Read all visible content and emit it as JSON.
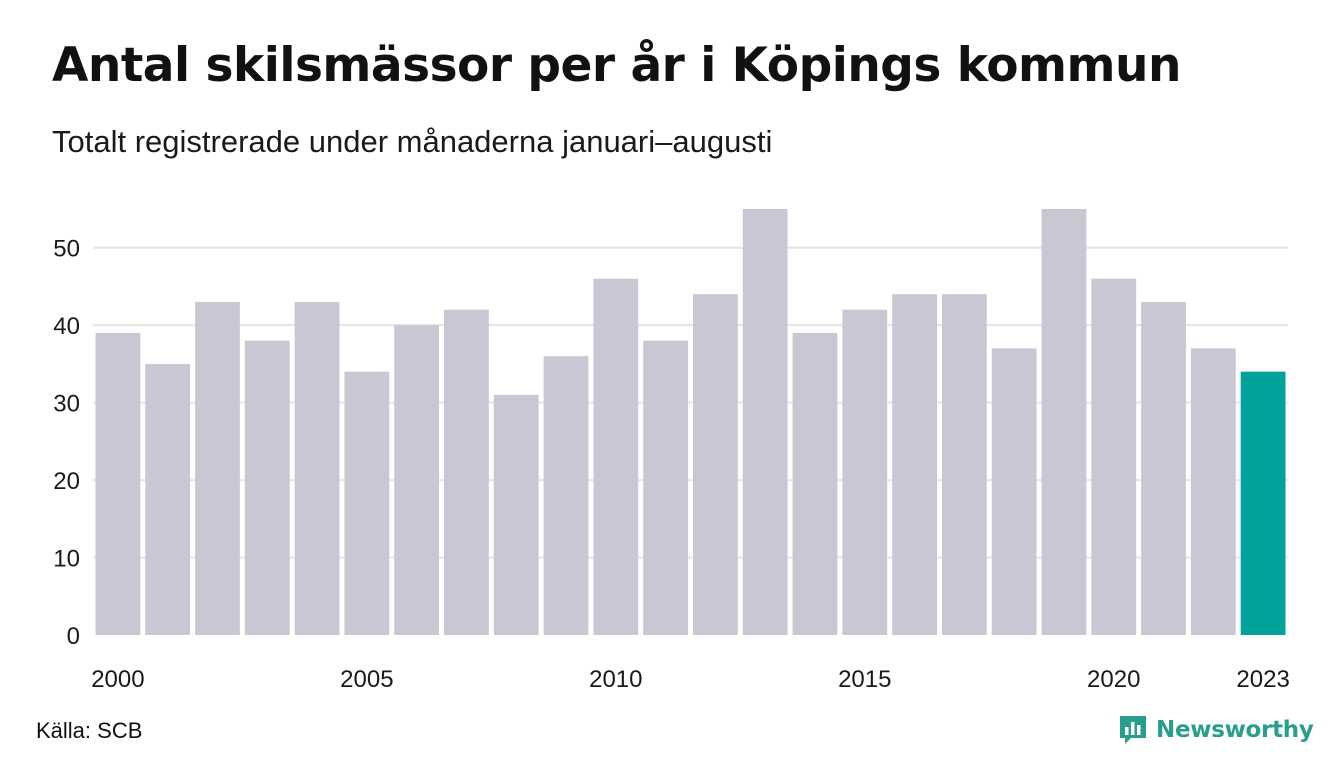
{
  "header": {
    "title": "Antal skilsmässor per år i Köpings kommun",
    "subtitle": "Totalt registrerade under månaderna januari–augusti"
  },
  "footer": {
    "source": "Källa: SCB",
    "brand": "Newsworthy",
    "brand_icon": "newsworthy-logo-icon"
  },
  "colors": {
    "bar": "#c9c7d3",
    "highlight": "#00a39a",
    "grid": "#e4e4e4",
    "brand": "#2a9d8f"
  },
  "chart_data": {
    "type": "bar",
    "categories": [
      "2000",
      "2001",
      "2002",
      "2003",
      "2004",
      "2005",
      "2006",
      "2007",
      "2008",
      "2009",
      "2010",
      "2011",
      "2012",
      "2013",
      "2014",
      "2015",
      "2016",
      "2017",
      "2018",
      "2019",
      "2020",
      "2021",
      "2022",
      "2023"
    ],
    "values": [
      39,
      35,
      43,
      38,
      43,
      34,
      40,
      42,
      31,
      36,
      46,
      38,
      44,
      55,
      39,
      42,
      44,
      44,
      37,
      55,
      46,
      43,
      37,
      34
    ],
    "highlight_category": "2023",
    "x_tick_labels": [
      "2000",
      "2005",
      "2010",
      "2015",
      "2020",
      "2023"
    ],
    "y_ticks": [
      0,
      10,
      20,
      30,
      40,
      50
    ],
    "ylim": [
      0,
      55
    ],
    "xlabel": "",
    "ylabel": "",
    "grid": true,
    "legend": "none"
  }
}
